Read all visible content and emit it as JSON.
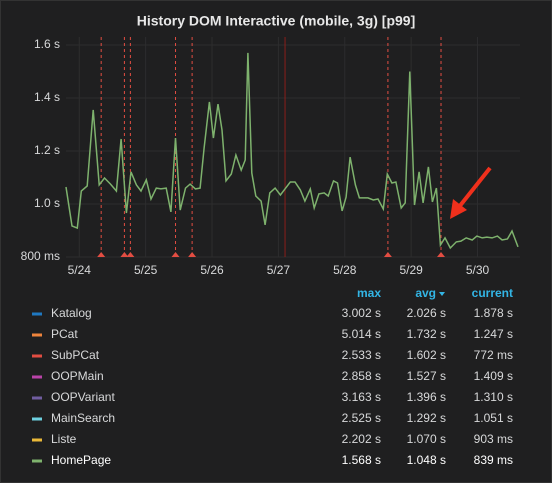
{
  "chart_data": {
    "type": "line",
    "title": "History DOM Interactive (mobile, 3g) [p99]",
    "xlim": [
      23.8,
      30.64
    ],
    "ylim": [
      0.8,
      1.63
    ],
    "yticks": [
      {
        "value": 0.8,
        "label": "800 ms"
      },
      {
        "value": 1.0,
        "label": "1.0 s"
      },
      {
        "value": 1.2,
        "label": "1.2 s"
      },
      {
        "value": 1.4,
        "label": "1.4 s"
      },
      {
        "value": 1.6,
        "label": "1.6 s"
      }
    ],
    "xticks": [
      {
        "value": 24,
        "label": "5/24"
      },
      {
        "value": 25,
        "label": "5/25"
      },
      {
        "value": 26,
        "label": "5/26"
      },
      {
        "value": 27,
        "label": "5/27"
      },
      {
        "value": 28,
        "label": "5/28"
      },
      {
        "value": 29,
        "label": "5/29"
      },
      {
        "value": 30,
        "label": "5/30"
      }
    ],
    "grid": true,
    "annotation_x": [
      24.33,
      24.68,
      24.77,
      25.45,
      25.7,
      28.65,
      29.45
    ],
    "annotation_color": "#e24d42",
    "marker_x": 27.1,
    "legend_headers": [
      "max",
      "avg",
      "current"
    ],
    "x": [
      23.8,
      23.89,
      23.97,
      24.03,
      24.12,
      24.21,
      24.3,
      24.38,
      24.47,
      24.56,
      24.63,
      24.71,
      24.78,
      24.86,
      24.93,
      25.01,
      25.08,
      25.16,
      25.23,
      25.31,
      25.38,
      25.45,
      25.52,
      25.6,
      25.67,
      25.75,
      25.82,
      25.88,
      25.96,
      26.02,
      26.09,
      26.15,
      26.21,
      26.29,
      26.36,
      26.44,
      26.5,
      26.54,
      26.6,
      26.66,
      26.74,
      26.8,
      26.87,
      26.95,
      27.03,
      27.1,
      27.18,
      27.25,
      27.33,
      27.4,
      27.48,
      27.54,
      27.61,
      27.69,
      27.75,
      27.83,
      27.89,
      27.96,
      28.02,
      28.08,
      28.16,
      28.22,
      28.28,
      28.35,
      28.43,
      28.5,
      28.58,
      28.64,
      28.71,
      28.77,
      28.85,
      28.91,
      28.98,
      29.05,
      29.12,
      29.18,
      29.26,
      29.32,
      29.38,
      29.44,
      29.51,
      29.59,
      29.68,
      29.75,
      29.83,
      29.92,
      29.99,
      30.07,
      30.14,
      30.22,
      30.3,
      30.37,
      30.45,
      30.52,
      30.61
    ],
    "series": [
      {
        "name": "Katalog",
        "color": "#1f78c1",
        "max": "3.002 s",
        "avg": "2.026 s",
        "current": "1.878 s"
      },
      {
        "name": "PCat",
        "color": "#ef843c",
        "max": "5.014 s",
        "avg": "1.732 s",
        "current": "1.247 s"
      },
      {
        "name": "SubPCat",
        "color": "#e24d42",
        "max": "2.533 s",
        "avg": "1.602 s",
        "current": "772 ms"
      },
      {
        "name": "OOPMain",
        "color": "#ba43a9",
        "max": "2.858 s",
        "avg": "1.527 s",
        "current": "1.409 s"
      },
      {
        "name": "OOPVariant",
        "color": "#705da0",
        "max": "3.163 s",
        "avg": "1.396 s",
        "current": "1.310 s"
      },
      {
        "name": "MainSearch",
        "color": "#6ed0e0",
        "max": "2.525 s",
        "avg": "1.292 s",
        "current": "1.051 s"
      },
      {
        "name": "Liste",
        "color": "#eab839",
        "max": "2.202 s",
        "avg": "1.070 s",
        "current": "903 ms"
      },
      {
        "name": "HomePage",
        "color": "#7eb26d",
        "max": "1.568 s",
        "avg": "1.048 s",
        "current": "839 ms",
        "values": [
          1.064,
          0.917,
          0.909,
          1.049,
          1.068,
          1.355,
          1.072,
          1.098,
          1.075,
          1.049,
          1.245,
          0.966,
          1.121,
          1.072,
          1.049,
          1.091,
          1.019,
          1.06,
          1.057,
          1.06,
          0.97,
          1.249,
          0.977,
          1.06,
          1.075,
          1.057,
          1.06,
          1.211,
          1.385,
          1.249,
          1.377,
          1.279,
          1.087,
          1.113,
          1.185,
          1.128,
          1.166,
          1.57,
          1.117,
          1.03,
          1.011,
          0.921,
          1.042,
          1.06,
          1.034,
          1.057,
          1.083,
          1.083,
          1.053,
          1.011,
          1.057,
          0.985,
          1.038,
          1.042,
          1.03,
          1.087,
          1.079,
          0.974,
          1.026,
          1.177,
          1.072,
          1.023,
          1.023,
          1.023,
          1.015,
          1.019,
          0.981,
          1.113,
          1.079,
          1.083,
          0.985,
          1.004,
          1.5,
          0.996,
          1.121,
          1.004,
          1.14,
          1.008,
          1.06,
          0.845,
          0.872,
          0.834,
          0.857,
          0.86,
          0.872,
          0.864,
          0.879,
          0.872,
          0.875,
          0.872,
          0.879,
          0.864,
          0.868,
          0.898,
          0.838
        ]
      }
    ]
  }
}
